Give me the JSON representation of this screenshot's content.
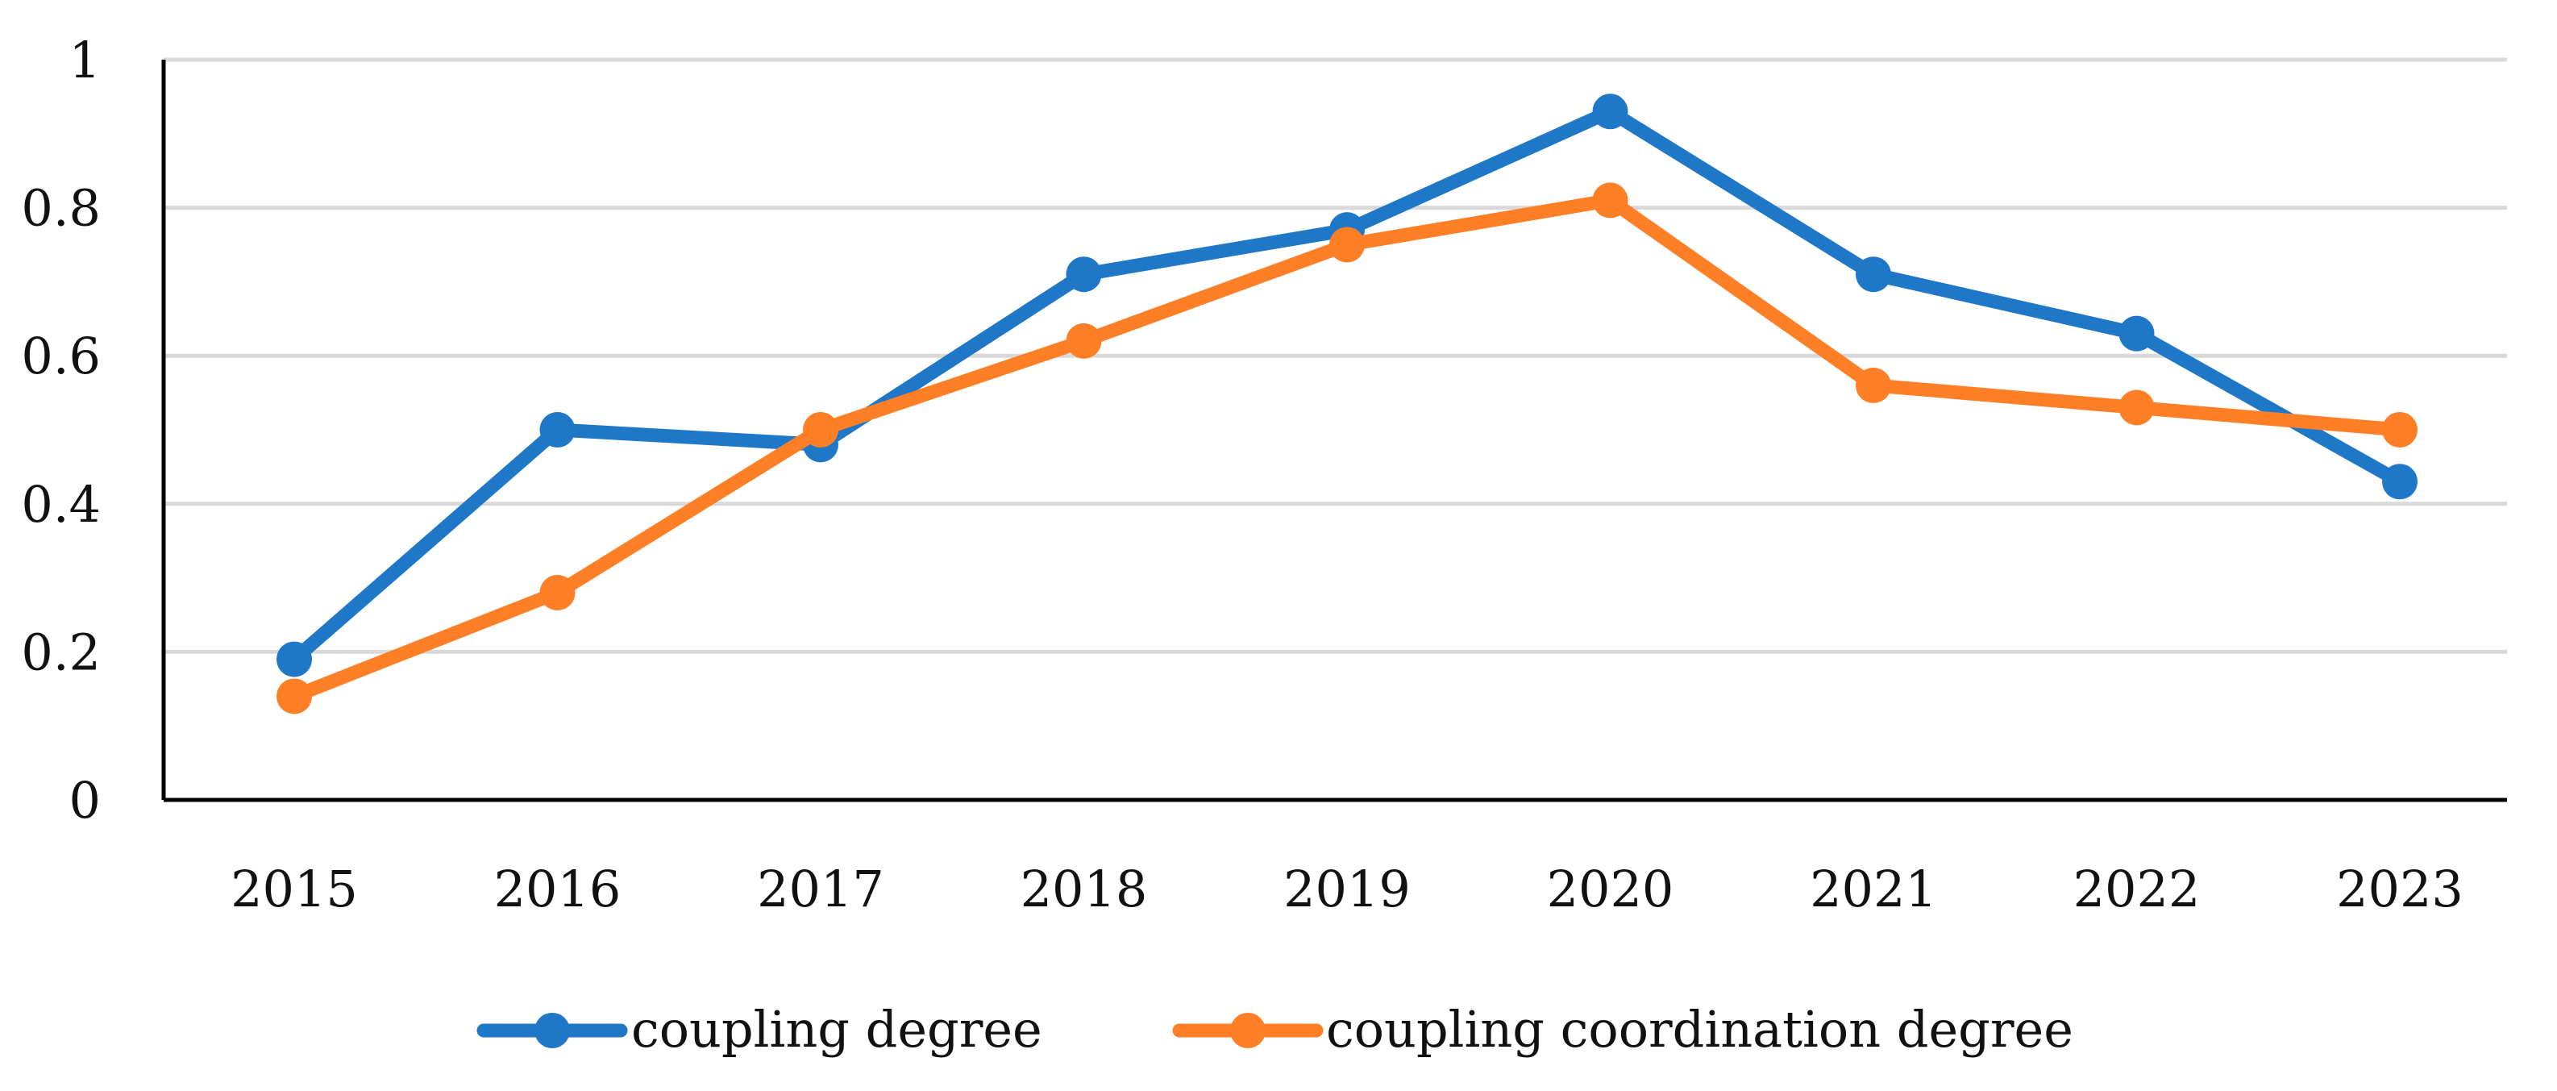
{
  "chart_data": {
    "type": "line",
    "title": "",
    "xlabel": "",
    "ylabel": "",
    "categories": [
      "2015",
      "2016",
      "2017",
      "2018",
      "2019",
      "2020",
      "2021",
      "2022",
      "2023"
    ],
    "ylim": [
      0,
      1
    ],
    "yticks": [
      0,
      0.2,
      0.4,
      0.6,
      0.8,
      1
    ],
    "ytick_labels": [
      "0",
      "0.2",
      "0.4",
      "0.6",
      "0.8",
      "1"
    ],
    "grid": true,
    "legend_position": "bottom",
    "series": [
      {
        "name": "coupling degree",
        "color": "#1f77c8",
        "values": [
          0.19,
          0.5,
          0.48,
          0.71,
          0.77,
          0.93,
          0.71,
          0.63,
          0.43
        ]
      },
      {
        "name": "coupling coordination degree",
        "color": "#ff7f27",
        "values": [
          0.14,
          0.28,
          0.5,
          0.62,
          0.75,
          0.81,
          0.56,
          0.53,
          0.5
        ]
      }
    ]
  }
}
